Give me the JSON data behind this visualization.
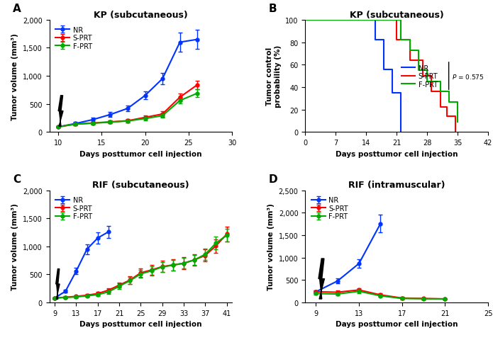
{
  "panel_A": {
    "title": "KP (subcutaneous)",
    "xlabel": "Days posttumor cell injection",
    "ylabel": "Tumor volume (mm³)",
    "ylim": [
      0,
      2000
    ],
    "yticks": [
      0,
      500,
      1000,
      1500,
      2000
    ],
    "yticklabels": [
      "0",
      "500",
      "1,000",
      "1,500",
      "2,000"
    ],
    "xlim": [
      9,
      30
    ],
    "xticks": [
      10,
      15,
      20,
      25,
      30
    ],
    "NR": {
      "x": [
        10,
        12,
        14,
        16,
        18,
        20,
        22,
        24,
        26
      ],
      "y": [
        90,
        150,
        220,
        310,
        420,
        650,
        950,
        1600,
        1650
      ],
      "yerr": [
        15,
        25,
        35,
        45,
        55,
        70,
        100,
        170,
        175
      ],
      "color": "#0033FF"
    },
    "SPRT": {
      "x": [
        10,
        12,
        14,
        16,
        18,
        20,
        22,
        24,
        26
      ],
      "y": [
        90,
        140,
        160,
        180,
        200,
        260,
        320,
        620,
        840
      ],
      "yerr": [
        15,
        20,
        22,
        25,
        28,
        35,
        45,
        65,
        75
      ],
      "color": "#FF0000"
    },
    "FPRT": {
      "x": [
        10,
        12,
        14,
        16,
        18,
        20,
        22,
        24,
        26
      ],
      "y": [
        90,
        140,
        155,
        175,
        195,
        240,
        290,
        560,
        690
      ],
      "yerr": [
        15,
        20,
        22,
        25,
        28,
        33,
        40,
        55,
        65
      ],
      "color": "#00AA00"
    }
  },
  "panel_B": {
    "title": "KP (subcutaneous)",
    "xlabel": "Days posttumor cell injection",
    "ylabel": "Tumor control\nprobability (%)",
    "ylim": [
      0,
      100
    ],
    "yticks": [
      0,
      20,
      40,
      60,
      80,
      100
    ],
    "xlim": [
      0,
      42
    ],
    "xticks": [
      0,
      7,
      14,
      21,
      28,
      35,
      42
    ],
    "pvalue": "P = 0.575",
    "NR": {
      "x": [
        0,
        14,
        16,
        18,
        20,
        22,
        22
      ],
      "y": [
        100,
        100,
        82,
        56,
        35,
        8,
        0
      ],
      "color": "#0033FF"
    },
    "SPRT": {
      "x": [
        0,
        19,
        21,
        24,
        27,
        29,
        31,
        32.5,
        34.5,
        34.5
      ],
      "y": [
        100,
        100,
        82,
        64,
        50,
        36,
        22,
        14,
        7,
        0
      ],
      "color": "#FF0000"
    },
    "FPRT": {
      "x": [
        0,
        19,
        22,
        24,
        26,
        28,
        31,
        33,
        35,
        35
      ],
      "y": [
        100,
        100,
        82,
        73,
        55,
        45,
        36,
        27,
        18,
        9
      ],
      "color": "#00AA00"
    }
  },
  "panel_C": {
    "title": "RIF (subcutaneous)",
    "xlabel": "Days posttumor cell injection",
    "ylabel": "Tumor volume (mm³)",
    "ylim": [
      0,
      2000
    ],
    "yticks": [
      0,
      500,
      1000,
      1500,
      2000
    ],
    "yticklabels": [
      "0",
      "500",
      "1,000",
      "1,500",
      "2,000"
    ],
    "xlim": [
      8,
      42
    ],
    "xticks": [
      9,
      13,
      17,
      21,
      25,
      29,
      33,
      37,
      41
    ],
    "NR": {
      "x": [
        9,
        11,
        13,
        15,
        17,
        19
      ],
      "y": [
        80,
        200,
        560,
        950,
        1150,
        1260
      ],
      "yerr": [
        12,
        28,
        55,
        85,
        100,
        110
      ],
      "color": "#0033FF"
    },
    "SPRT": {
      "x": [
        9,
        11,
        13,
        15,
        17,
        19,
        21,
        23,
        25,
        27,
        29,
        31,
        33,
        35,
        37,
        39,
        41
      ],
      "y": [
        80,
        95,
        110,
        130,
        160,
        220,
        310,
        400,
        530,
        580,
        640,
        670,
        700,
        760,
        840,
        1010,
        1220
      ],
      "yerr": [
        10,
        15,
        18,
        22,
        28,
        38,
        50,
        65,
        80,
        90,
        100,
        105,
        105,
        100,
        110,
        120,
        130
      ],
      "color": "#FF0000"
    },
    "FPRT": {
      "x": [
        9,
        11,
        13,
        15,
        17,
        19,
        21,
        23,
        25,
        27,
        29,
        31,
        33,
        35,
        37,
        39,
        41
      ],
      "y": [
        80,
        90,
        100,
        120,
        140,
        190,
        290,
        390,
        510,
        565,
        635,
        665,
        700,
        760,
        860,
        1060,
        1200
      ],
      "yerr": [
        10,
        14,
        17,
        21,
        27,
        36,
        48,
        62,
        72,
        82,
        90,
        98,
        98,
        90,
        100,
        110,
        115
      ],
      "color": "#00AA00"
    }
  },
  "panel_D": {
    "title": "RIF (intramuscular)",
    "xlabel": "Days posttumor cell injection",
    "ylabel": "Tumor volume (mm³)",
    "ylim": [
      0,
      2500
    ],
    "yticks": [
      0,
      500,
      1000,
      1500,
      2000,
      2500
    ],
    "yticklabels": [
      "0",
      "500",
      "1,000",
      "1,500",
      "2,000",
      "2,500"
    ],
    "xlim": [
      8,
      25
    ],
    "xticks": [
      9,
      13,
      17,
      21,
      25
    ],
    "NR": {
      "x": [
        9,
        11,
        13,
        15
      ],
      "y": [
        240,
        480,
        870,
        1760
      ],
      "yerr": [
        30,
        60,
        100,
        200
      ],
      "color": "#0033FF"
    },
    "SPRT": {
      "x": [
        9,
        11,
        13,
        15,
        17,
        19,
        21
      ],
      "y": [
        240,
        230,
        280,
        170,
        100,
        90,
        80
      ],
      "yerr": [
        30,
        35,
        40,
        30,
        20,
        20,
        18
      ],
      "color": "#FF0000"
    },
    "FPRT": {
      "x": [
        9,
        11,
        13,
        15,
        17,
        19,
        21
      ],
      "y": [
        200,
        190,
        250,
        150,
        90,
        85,
        80
      ],
      "yerr": [
        28,
        32,
        38,
        28,
        18,
        18,
        15
      ],
      "color": "#00AA00"
    }
  }
}
